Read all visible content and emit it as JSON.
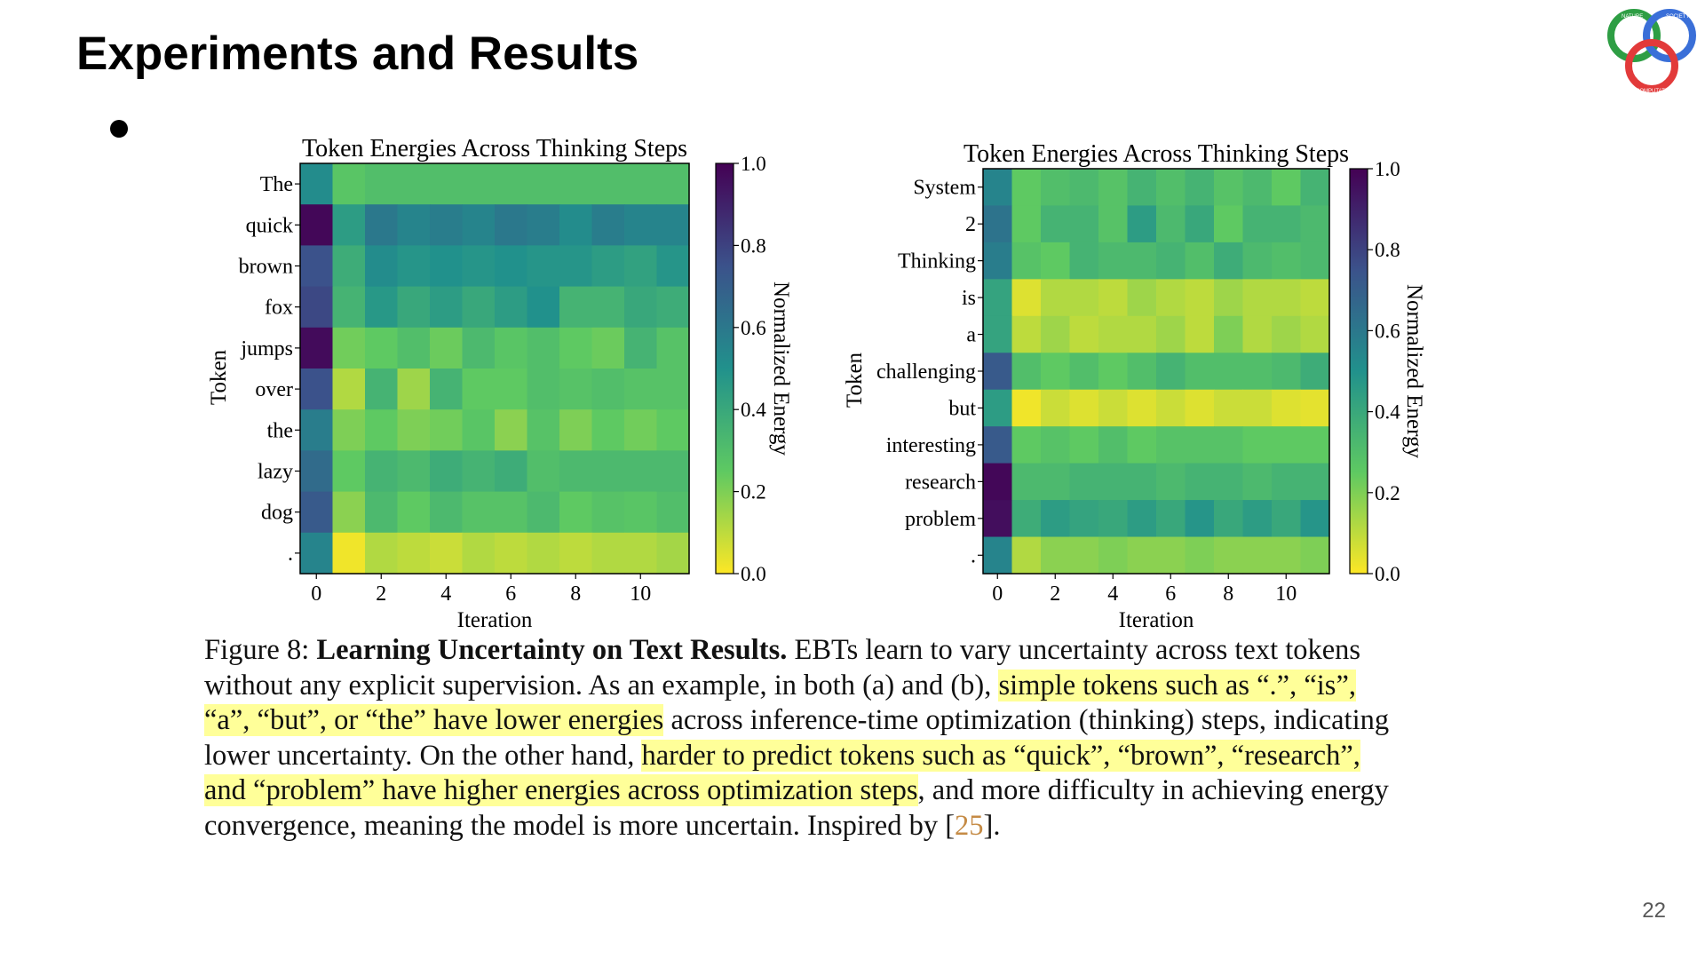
{
  "slide": {
    "title": "Experiments and Results",
    "page_number": "22"
  },
  "logo": {
    "name": "nature-society-computation-logo",
    "colors": [
      "#2e9e44",
      "#3a6fd8",
      "#e23a3a"
    ],
    "text_top_left": "NATURE",
    "text_top_right": "SOCIETY",
    "text_bottom": "COMPUTATION"
  },
  "colormap": [
    "#440154",
    "#3b528b",
    "#21918c",
    "#5ec962",
    "#fde725"
  ],
  "chart_data": [
    {
      "type": "heatmap",
      "title": "Token Energies Across Thinking Steps",
      "xlabel": "Iteration",
      "ylabel": "Token",
      "colorbar_label": "Normalized Energy",
      "colorbar_ticks": [
        "0.0",
        "0.2",
        "0.4",
        "0.6",
        "0.8",
        "1.0"
      ],
      "colorbar_range": [
        0,
        1
      ],
      "xtick_values": [
        0,
        2,
        4,
        6,
        8,
        10
      ],
      "xtick_labels": [
        "0",
        "2",
        "4",
        "6",
        "8",
        "10"
      ],
      "x_range": [
        -0.5,
        11.5
      ],
      "tokens": [
        "The",
        "quick",
        "brown",
        "fox",
        "jumps",
        "over",
        "the",
        "lazy",
        "dog",
        "."
      ],
      "values": [
        [
          0.52,
          0.27,
          0.3,
          0.3,
          0.3,
          0.3,
          0.3,
          0.3,
          0.3,
          0.3,
          0.3,
          0.3
        ],
        [
          0.98,
          0.45,
          0.6,
          0.55,
          0.58,
          0.55,
          0.6,
          0.58,
          0.52,
          0.58,
          0.55,
          0.55
        ],
        [
          0.75,
          0.38,
          0.52,
          0.48,
          0.5,
          0.48,
          0.5,
          0.48,
          0.48,
          0.45,
          0.43,
          0.48
        ],
        [
          0.78,
          0.35,
          0.47,
          0.4,
          0.45,
          0.4,
          0.45,
          0.5,
          0.35,
          0.35,
          0.4,
          0.38
        ],
        [
          0.97,
          0.22,
          0.25,
          0.3,
          0.23,
          0.32,
          0.27,
          0.3,
          0.25,
          0.23,
          0.35,
          0.28
        ],
        [
          0.75,
          0.12,
          0.35,
          0.15,
          0.35,
          0.25,
          0.25,
          0.3,
          0.28,
          0.3,
          0.28,
          0.28
        ],
        [
          0.58,
          0.2,
          0.25,
          0.2,
          0.22,
          0.27,
          0.18,
          0.28,
          0.2,
          0.25,
          0.22,
          0.25
        ],
        [
          0.65,
          0.25,
          0.35,
          0.32,
          0.38,
          0.35,
          0.38,
          0.3,
          0.32,
          0.32,
          0.32,
          0.32
        ],
        [
          0.72,
          0.18,
          0.32,
          0.25,
          0.32,
          0.28,
          0.28,
          0.32,
          0.25,
          0.28,
          0.27,
          0.3
        ],
        [
          0.55,
          0.02,
          0.12,
          0.1,
          0.08,
          0.12,
          0.1,
          0.12,
          0.1,
          0.12,
          0.12,
          0.14
        ]
      ]
    },
    {
      "type": "heatmap",
      "title": "Token Energies Across Thinking Steps",
      "xlabel": "Iteration",
      "ylabel": "Token",
      "colorbar_label": "Normalized Energy",
      "colorbar_ticks": [
        "0.0",
        "0.2",
        "0.4",
        "0.6",
        "0.8",
        "1.0"
      ],
      "colorbar_range": [
        0,
        1
      ],
      "xtick_values": [
        0,
        2,
        4,
        6,
        8,
        10
      ],
      "xtick_labels": [
        "0",
        "2",
        "4",
        "6",
        "8",
        "10"
      ],
      "x_range": [
        -0.5,
        11.5
      ],
      "tokens": [
        "System",
        "2",
        "Thinking",
        "is",
        "a",
        "challenging",
        "but",
        "interesting",
        "research",
        "problem",
        "."
      ],
      "values": [
        [
          0.55,
          0.25,
          0.3,
          0.32,
          0.28,
          0.35,
          0.3,
          0.35,
          0.28,
          0.32,
          0.25,
          0.35
        ],
        [
          0.62,
          0.25,
          0.35,
          0.35,
          0.28,
          0.45,
          0.32,
          0.4,
          0.25,
          0.35,
          0.35,
          0.32
        ],
        [
          0.58,
          0.28,
          0.25,
          0.35,
          0.32,
          0.32,
          0.35,
          0.3,
          0.38,
          0.32,
          0.3,
          0.32
        ],
        [
          0.42,
          0.05,
          0.12,
          0.12,
          0.1,
          0.15,
          0.12,
          0.1,
          0.15,
          0.12,
          0.12,
          0.1
        ],
        [
          0.42,
          0.1,
          0.15,
          0.1,
          0.12,
          0.12,
          0.15,
          0.1,
          0.2,
          0.12,
          0.15,
          0.12
        ],
        [
          0.72,
          0.3,
          0.25,
          0.3,
          0.25,
          0.3,
          0.35,
          0.3,
          0.3,
          0.3,
          0.32,
          0.38
        ],
        [
          0.45,
          0.02,
          0.08,
          0.05,
          0.08,
          0.05,
          0.08,
          0.05,
          0.08,
          0.08,
          0.05,
          0.04
        ],
        [
          0.72,
          0.25,
          0.28,
          0.25,
          0.3,
          0.25,
          0.28,
          0.28,
          0.28,
          0.25,
          0.25,
          0.25
        ],
        [
          0.98,
          0.32,
          0.32,
          0.35,
          0.35,
          0.35,
          0.32,
          0.35,
          0.35,
          0.32,
          0.35,
          0.35
        ],
        [
          0.96,
          0.38,
          0.45,
          0.42,
          0.4,
          0.45,
          0.4,
          0.48,
          0.4,
          0.45,
          0.4,
          0.48
        ],
        [
          0.55,
          0.12,
          0.18,
          0.18,
          0.2,
          0.18,
          0.18,
          0.2,
          0.18,
          0.18,
          0.18,
          0.2
        ]
      ]
    }
  ],
  "caption": {
    "p1": "Figure 8: ",
    "p2": "Learning Uncertainty on Text Results.",
    "p3": " EBTs learn to vary uncertainty across text tokens\nwithout any explicit supervision. As an example, in both (a) and (b), ",
    "p4": "simple tokens such as “.”, “is”,\n“a”, “but”, or “the” have lower energies",
    "p5": " across inference-time optimization (thinking) steps, indicating\nlower uncertainty. On the other hand, ",
    "p6": "harder to predict tokens such as “quick”, “brown”, “research”,\nand “problem” have higher energies across optimization steps",
    "p7": ", and more difficulty in achieving energy\nconvergence, meaning the model is more uncertain. Inspired by [",
    "p8": "25",
    "p9": "]."
  }
}
